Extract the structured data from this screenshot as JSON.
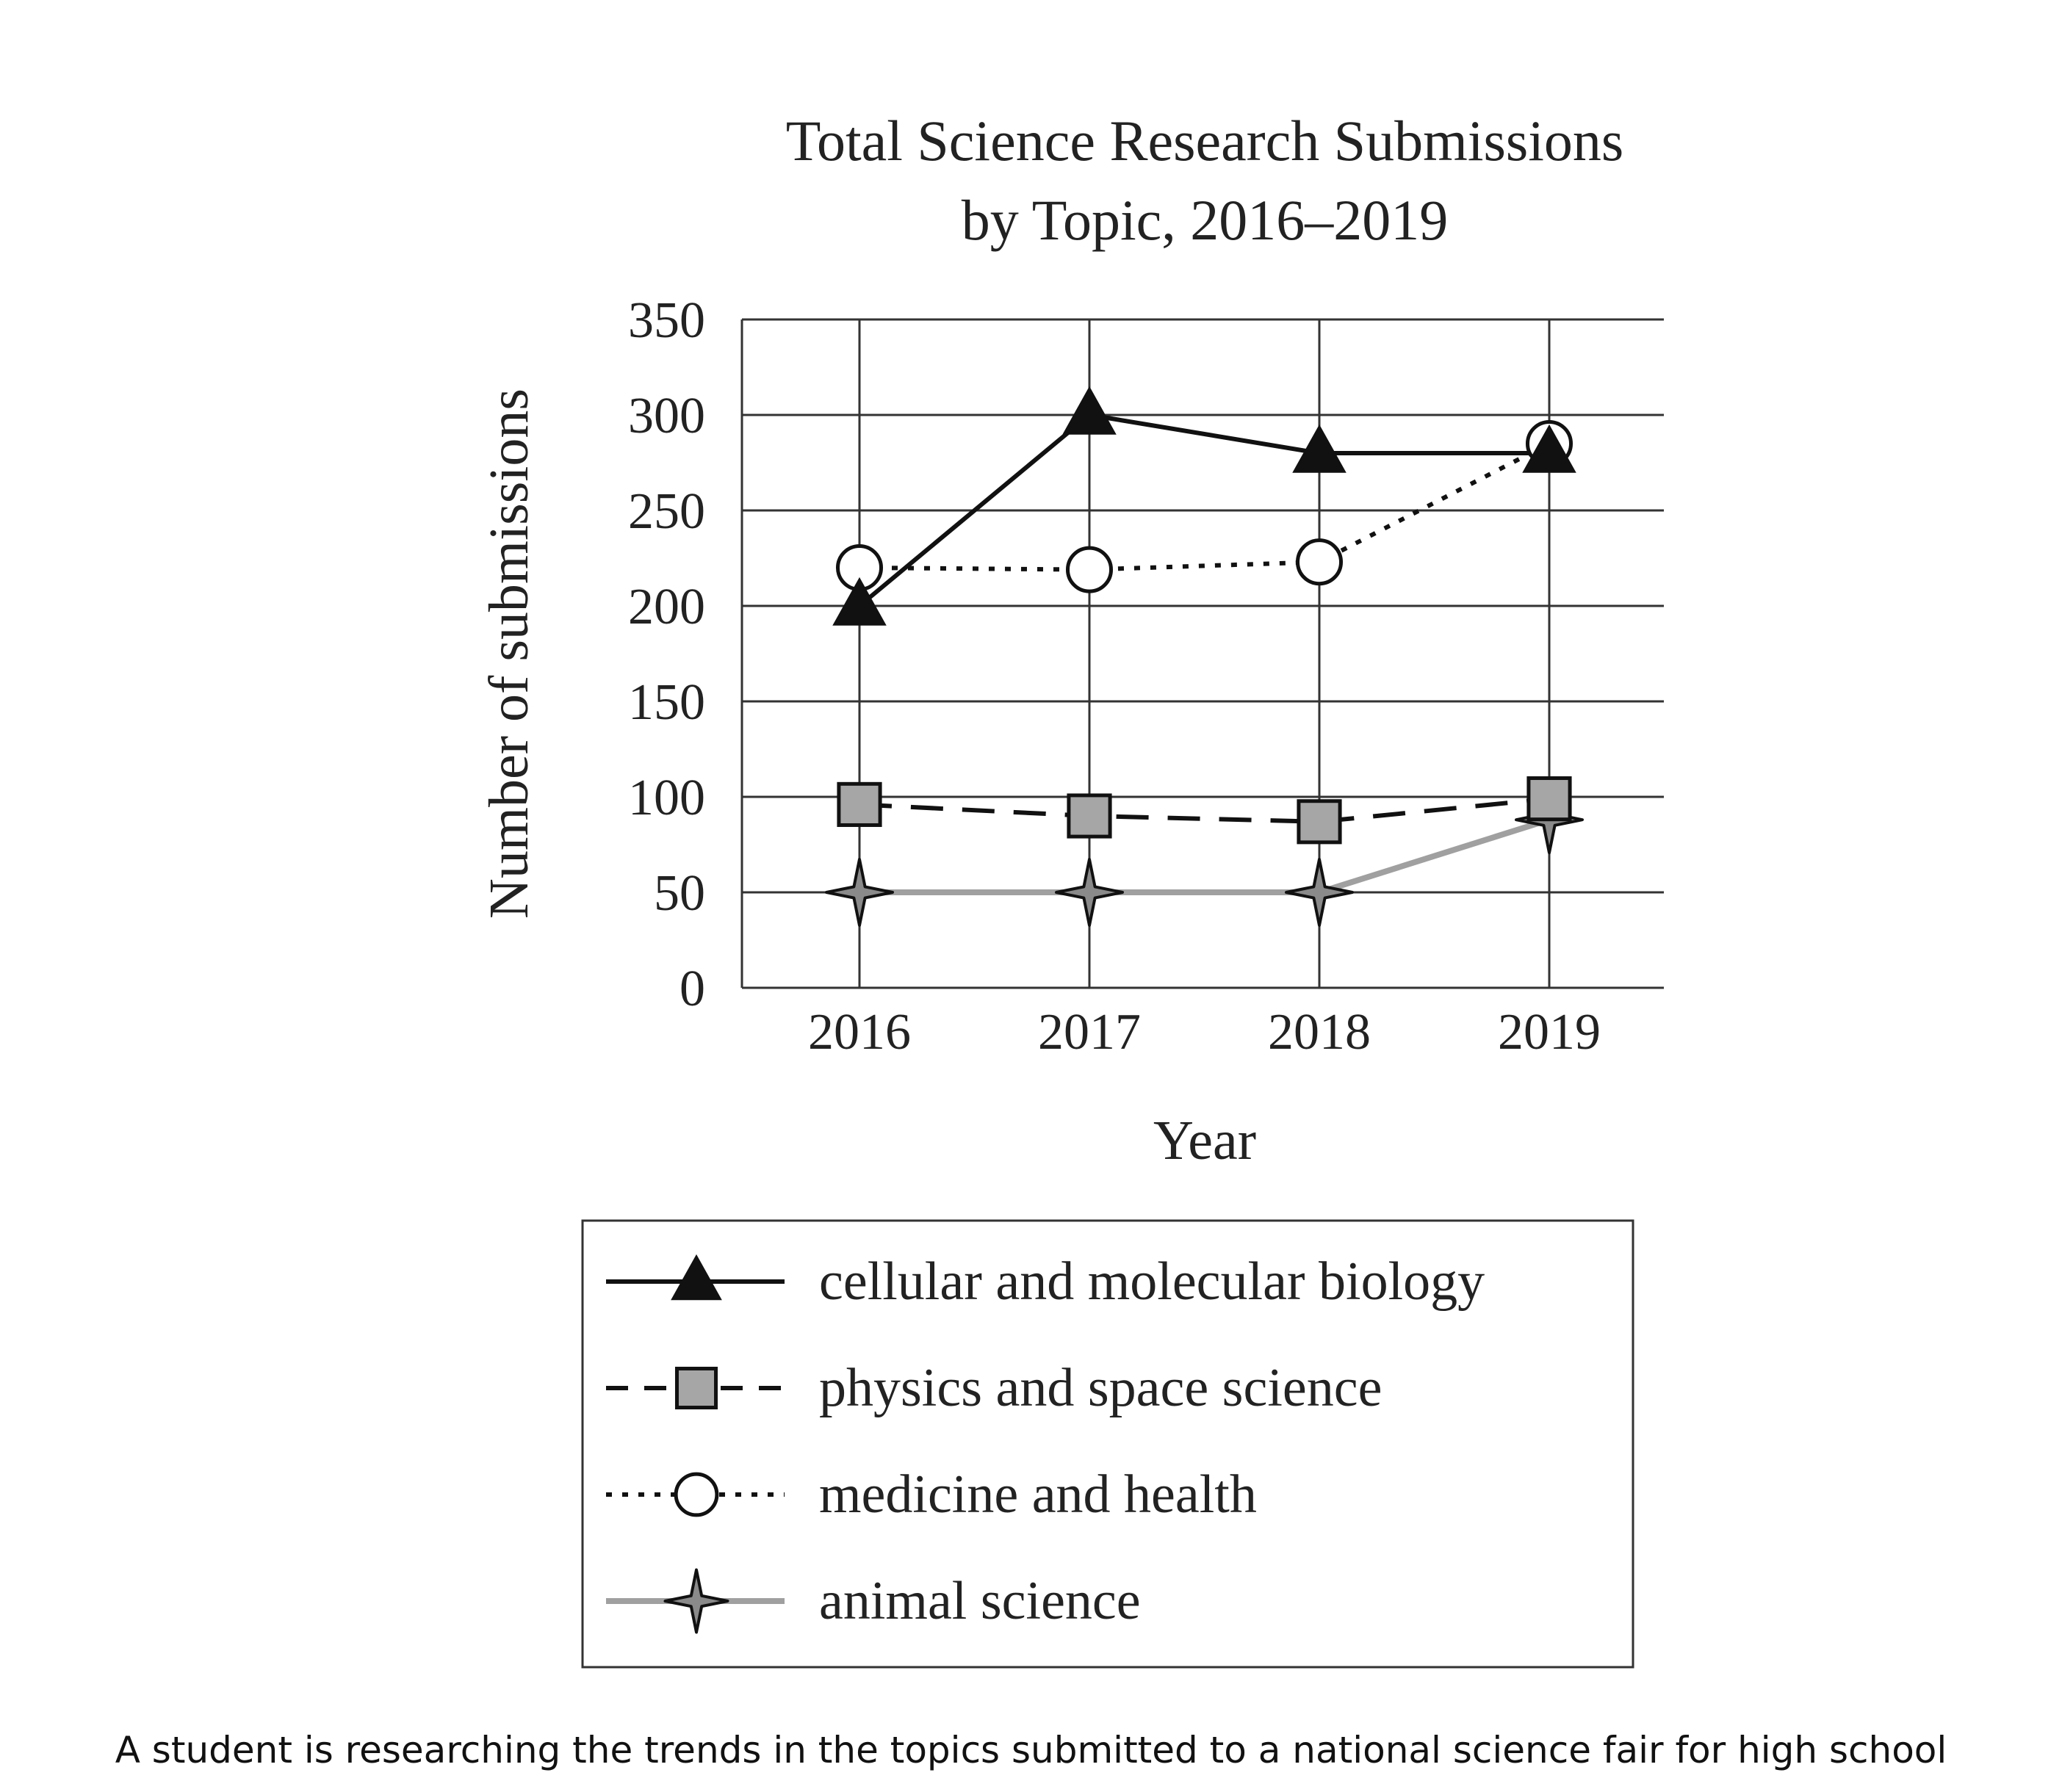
{
  "chart_data": {
    "type": "line",
    "title": "Total Science Research Submissions",
    "subtitle": "by Topic, 2016–2019",
    "xlabel": "Year",
    "ylabel": "Number of submissions",
    "categories": [
      "2016",
      "2017",
      "2018",
      "2019"
    ],
    "ylim": [
      0,
      350
    ],
    "yticks": [
      0,
      50,
      100,
      150,
      200,
      250,
      300,
      350
    ],
    "grid": true,
    "legend_position": "bottom",
    "series": [
      {
        "name": "cellular and molecular biology",
        "values": [
          200,
          300,
          280,
          280
        ],
        "line_style": "solid",
        "marker": "triangle",
        "line_color": "#111111",
        "marker_fill": "#111111"
      },
      {
        "name": "physics and space science",
        "values": [
          96,
          90,
          87,
          99
        ],
        "line_style": "dashed",
        "marker": "square",
        "line_color": "#111111",
        "marker_fill": "#a6a6a6"
      },
      {
        "name": "medicine and health",
        "values": [
          220,
          219,
          223,
          285
        ],
        "line_style": "dotted",
        "marker": "circle",
        "line_color": "#111111",
        "marker_fill": "#ffffff"
      },
      {
        "name": "animal science",
        "values": [
          50,
          50,
          50,
          88
        ],
        "line_style": "solid",
        "marker": "four-point-star",
        "line_color": "#a0a0a0",
        "marker_fill": "#8a8a8a"
      }
    ]
  },
  "caption": {
    "text": "A student is researching the trends in the topics submitted to a national science fair for high school"
  }
}
